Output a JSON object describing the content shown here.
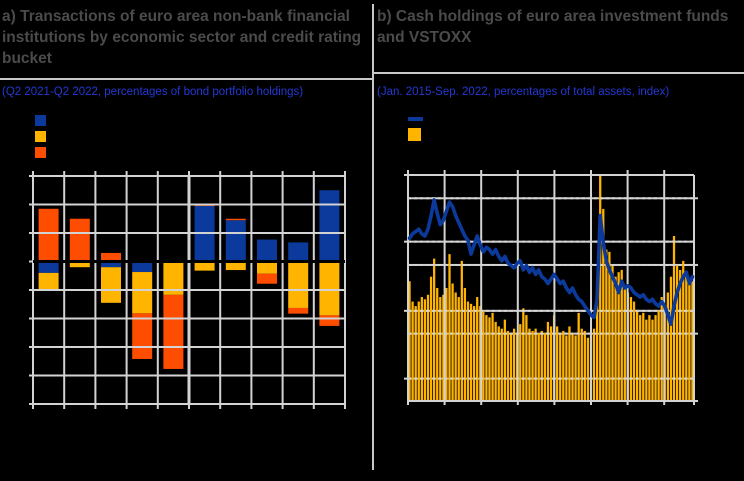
{
  "colors": {
    "background": "#000000",
    "title_text": "#4b4b4b",
    "subtitle_text": "#2438d4",
    "rule": "#c8c8c8",
    "grid": "#d3d3d3",
    "zero_line": "#000000",
    "blue": "#0b3a9c",
    "yellow": "#ffb400",
    "orange": "#ff4d00"
  },
  "panels": {
    "left": {
      "title": "a) Transactions of euro area non-bank financial institutions by economic sector and credit rating bucket",
      "subtitle": "(Q2 2021-Q2 2022, percentages of bond portfolio holdings)",
      "legend": [
        {
          "swatch": "square",
          "color_key": "blue",
          "label": ""
        },
        {
          "swatch": "square",
          "color_key": "yellow",
          "label": ""
        },
        {
          "swatch": "square",
          "color_key": "orange",
          "label": ""
        }
      ],
      "legend_labels_visible": false
    },
    "right": {
      "title": "b) Cash holdings of euro area investment funds and VSTOXX",
      "subtitle": "(Jan. 2015-Sep. 2022, percentages of total assets, index)",
      "legend": [
        {
          "swatch": "line",
          "color_key": "blue",
          "label": ""
        },
        {
          "swatch": "square",
          "color_key": "yellow",
          "label": ""
        }
      ],
      "legend_labels_visible": false
    }
  },
  "chart_data": [
    {
      "type": "bar",
      "title": "a) Transactions of euro area non-bank financial institutions by economic sector and credit rating bucket",
      "subtitle": "(Q2 2021-Q2 2022, percentages of bond portfolio holdings)",
      "stacked": true,
      "n_bars": 10,
      "grouping": "two groups of five bars separated by a heavier centre gridline",
      "categories": [
        "",
        "",
        "",
        "",
        "",
        "",
        "",
        "",
        "",
        ""
      ],
      "axis_tick_labels_visible": false,
      "y_units": "gridline intervals (tick labels not legible; black text on black)",
      "ylim": [
        -5,
        3
      ],
      "y_gridline_step": 1,
      "series_stack_order": [
        "blue",
        "yellow",
        "orange"
      ],
      "bars": [
        {
          "blue": -0.4,
          "yellow": -0.6,
          "orange": 1.85
        },
        {
          "blue": 0.0,
          "yellow": -0.2,
          "orange": 1.5
        },
        {
          "blue": -0.2,
          "yellow": -1.25,
          "orange": 0.3
        },
        {
          "blue": -0.37,
          "yellow": -1.45,
          "orange": -1.6
        },
        {
          "blue": -0.05,
          "yellow": -1.12,
          "orange": -2.6
        },
        {
          "blue": 1.95,
          "yellow": -0.32,
          "orange": 0.08
        },
        {
          "blue": 1.45,
          "yellow": -0.3,
          "orange": 0.05
        },
        {
          "blue": 0.77,
          "yellow": -0.43,
          "orange": -0.35
        },
        {
          "blue": 0.67,
          "yellow": -1.63,
          "orange": -0.2
        },
        {
          "blue": 2.5,
          "yellow": -1.89,
          "orange": -0.37
        }
      ],
      "legend_position": "top-left, swatches only (labels not legible)"
    },
    {
      "type": "line+bar",
      "title": "b) Cash holdings of euro area investment funds and VSTOXX",
      "subtitle": "(Jan. 2015-Sep. 2022, percentages of total assets, index)",
      "x": "monthly, Jan 2015 - Sep 2022 (93 points)",
      "x_year_gridlines": [
        2015,
        2016,
        2017,
        2018,
        2019,
        2020,
        2021,
        2022
      ],
      "axis_tick_labels_visible": false,
      "y_units": "fraction of plot height, 0=bottom 1=top (dual axis; tick labels not legible)",
      "h_gridline_fracs_left_axis": [
        0,
        0.295,
        0.601,
        0.901
      ],
      "h_gridline_fracs_right_axis": [
        0.103,
        0.398,
        0.702,
        1.0
      ],
      "grid": "on",
      "legend_position": "top-left, swatches only (labels not legible)",
      "series": [
        {
          "name": "blue line",
          "type": "line",
          "color_key": "blue",
          "values_frac": [
            0.72,
            0.74,
            0.75,
            0.76,
            0.74,
            0.73,
            0.76,
            0.82,
            0.89,
            0.83,
            0.78,
            0.8,
            0.84,
            0.88,
            0.86,
            0.82,
            0.79,
            0.76,
            0.73,
            0.71,
            0.65,
            0.69,
            0.73,
            0.69,
            0.66,
            0.68,
            0.67,
            0.65,
            0.67,
            0.64,
            0.62,
            0.64,
            0.61,
            0.6,
            0.59,
            0.61,
            0.62,
            0.58,
            0.6,
            0.57,
            0.59,
            0.56,
            0.58,
            0.55,
            0.54,
            0.52,
            0.54,
            0.56,
            0.54,
            0.52,
            0.53,
            0.5,
            0.48,
            0.5,
            0.47,
            0.45,
            0.44,
            0.42,
            0.4,
            0.38,
            0.37,
            0.45,
            0.82,
            0.7,
            0.62,
            0.58,
            0.55,
            0.52,
            0.48,
            0.53,
            0.5,
            0.51,
            0.5,
            0.48,
            0.47,
            0.46,
            0.47,
            0.45,
            0.44,
            0.45,
            0.43,
            0.42,
            0.44,
            0.42,
            0.38,
            0.34,
            0.42,
            0.48,
            0.52,
            0.55,
            0.57,
            0.52,
            0.55
          ]
        },
        {
          "name": "yellow bars",
          "type": "bar",
          "color_key": "yellow",
          "values_frac": [
            0.53,
            0.44,
            0.42,
            0.44,
            0.46,
            0.45,
            0.47,
            0.55,
            0.63,
            0.5,
            0.46,
            0.47,
            0.5,
            0.65,
            0.52,
            0.48,
            0.46,
            0.62,
            0.5,
            0.44,
            0.43,
            0.42,
            0.46,
            0.42,
            0.4,
            0.38,
            0.37,
            0.39,
            0.35,
            0.33,
            0.32,
            0.36,
            0.31,
            0.3,
            0.32,
            0.3,
            0.34,
            0.41,
            0.38,
            0.32,
            0.31,
            0.32,
            0.3,
            0.31,
            0.3,
            0.35,
            0.33,
            0.38,
            0.33,
            0.3,
            0.31,
            0.29,
            0.33,
            0.3,
            0.29,
            0.39,
            0.32,
            0.31,
            0.28,
            0.29,
            0.32,
            0.45,
            1.0,
            0.85,
            0.67,
            0.66,
            0.6,
            0.55,
            0.57,
            0.58,
            0.5,
            0.48,
            0.46,
            0.44,
            0.4,
            0.38,
            0.39,
            0.36,
            0.38,
            0.36,
            0.38,
            0.4,
            0.46,
            0.4,
            0.48,
            0.55,
            0.73,
            0.6,
            0.58,
            0.62,
            0.55,
            0.52,
            0.53
          ]
        }
      ]
    }
  ]
}
